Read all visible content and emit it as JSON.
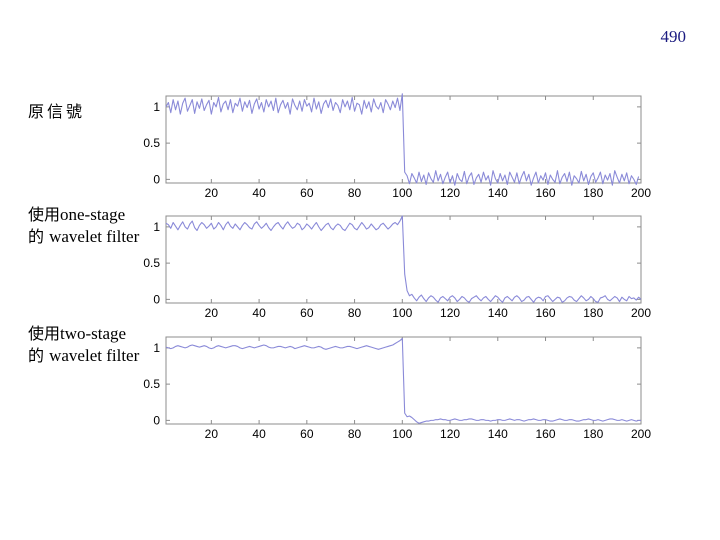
{
  "page_number": "490",
  "labels": {
    "original": "原信號",
    "one_stage_prefix": "使用",
    "one_stage_text": "one-stage",
    "two_stage_prefix": "使用",
    "two_stage_text": "two-stage",
    "de_prefix": "的",
    "wavelet_text": "wavelet filter"
  },
  "colors": {
    "series": "#8a8ad8",
    "axis": "#8c8c8c"
  },
  "chart_data": [
    {
      "type": "line",
      "title": "",
      "xlabel": "",
      "ylabel": "",
      "xlim": [
        1,
        200
      ],
      "ylim": [
        -0.05,
        1.15
      ],
      "x_ticks": [
        20,
        40,
        60,
        80,
        100,
        120,
        140,
        160,
        180,
        200
      ],
      "y_ticks": [
        {
          "v": 0,
          "label": "0"
        },
        {
          "v": 0.5,
          "label": "0.5"
        },
        {
          "v": 1,
          "label": "1"
        }
      ],
      "grid": false,
      "series": [
        {
          "values": [
            1.0,
            1.06,
            0.92,
            1.1,
            0.96,
            1.08,
            0.9,
            1.05,
            1.12,
            0.94,
            1.02,
            1.1,
            0.91,
            1.07,
            0.98,
            1.11,
            0.95,
            1.03,
            1.09,
            0.9,
            1.06,
            1.0,
            1.13,
            0.93,
            1.04,
            1.08,
            0.96,
            1.1,
            0.92,
            1.05,
            1.01,
            1.12,
            0.94,
            1.07,
            0.99,
            1.09,
            0.91,
            1.04,
            1.11,
            0.97,
            1.06,
            0.93,
            1.1,
            1.0,
            1.08,
            0.95,
            1.12,
            0.92,
            1.03,
            1.09,
            0.98,
            1.06,
            0.9,
            1.11,
            1.02,
            0.96,
            1.08,
            0.94,
            1.1,
            1.01,
            1.05,
            0.93,
            1.12,
            0.97,
            1.07,
            0.91,
            1.04,
            1.09,
            0.99,
            1.11,
            0.95,
            1.06,
            1.02,
            0.92,
            1.1,
            1.0,
            1.08,
            0.96,
            1.13,
            0.94,
            1.05,
            1.03,
            0.9,
            1.09,
            0.98,
            1.07,
            0.93,
            1.11,
            1.01,
            0.97,
            1.06,
            0.92,
            1.1,
            1.04,
            0.96,
            1.08,
            0.99,
            1.12,
            0.95,
            1.18,
            0.1,
            0.05,
            -0.06,
            0.08,
            0.02,
            -0.05,
            0.1,
            -0.03,
            0.06,
            -0.07,
            0.09,
            0.01,
            -0.04,
            0.12,
            -0.02,
            0.07,
            -0.06,
            0.03,
            0.1,
            -0.05,
            0.05,
            -0.08,
            0.08,
            0.0,
            -0.03,
            0.11,
            -0.06,
            0.04,
            0.09,
            -0.07,
            0.02,
            0.07,
            -0.04,
            0.1,
            -0.01,
            0.05,
            -0.08,
            0.12,
            0.01,
            -0.05,
            0.08,
            -0.02,
            0.06,
            -0.07,
            0.1,
            0.03,
            -0.04,
            0.09,
            -0.06,
            0.04,
            0.11,
            -0.02,
            0.07,
            -0.08,
            0.02,
            0.1,
            -0.05,
            0.05,
            -0.01,
            0.09,
            -0.07,
            0.06,
            0.0,
            -0.04,
            0.12,
            -0.06,
            0.03,
            0.08,
            -0.03,
            0.1,
            -0.08,
            0.05,
            0.01,
            -0.05,
            0.11,
            -0.02,
            0.07,
            -0.07,
            0.04,
            0.09,
            -0.04,
            0.02,
            0.1,
            -0.06,
            0.06,
            -0.01,
            0.08,
            -0.08,
            0.12,
            0.03,
            -0.05,
            0.07,
            -0.02,
            0.09,
            -0.06,
            0.05,
            0.0,
            -0.07,
            0.04
          ]
        }
      ]
    },
    {
      "type": "line",
      "title": "",
      "xlabel": "",
      "ylabel": "",
      "xlim": [
        1,
        200
      ],
      "ylim": [
        -0.05,
        1.15
      ],
      "x_ticks": [
        20,
        40,
        60,
        80,
        100,
        120,
        140,
        160,
        180,
        200
      ],
      "y_ticks": [
        {
          "v": 0,
          "label": "0"
        },
        {
          "v": 0.5,
          "label": "0.5"
        },
        {
          "v": 1,
          "label": "1"
        }
      ],
      "grid": false,
      "series": [
        {
          "values": [
            1.05,
            1.03,
            0.98,
            1.06,
            1.01,
            0.96,
            1.02,
            1.07,
            1.0,
            0.97,
            1.04,
            1.08,
            0.99,
            0.95,
            1.02,
            1.06,
            1.03,
            0.98,
            1.01,
            1.05,
            0.97,
            1.0,
            1.06,
            1.02,
            0.96,
            1.03,
            1.07,
            1.01,
            0.98,
            1.04,
            1.0,
            0.96,
            1.02,
            1.06,
            1.03,
            0.99,
            0.97,
            1.04,
            1.07,
            1.02,
            0.98,
            1.01,
            1.05,
            0.99,
            0.95,
            1.0,
            1.04,
            1.06,
            1.01,
            0.97,
            1.03,
            1.07,
            1.02,
            0.98,
            1.0,
            1.05,
            1.03,
            0.96,
            0.99,
            1.04,
            1.01,
            0.97,
            1.02,
            1.06,
            1.0,
            0.95,
            0.99,
            1.03,
            1.05,
            0.99,
            0.96,
            1.01,
            1.04,
            1.02,
            0.97,
            0.95,
            1.0,
            1.05,
            1.03,
            0.98,
            0.96,
            1.01,
            1.06,
            1.02,
            0.97,
            0.99,
            1.04,
            1.0,
            0.96,
            0.98,
            1.03,
            1.05,
            1.01,
            0.97,
            1.0,
            1.04,
            1.06,
            1.03,
            1.08,
            1.15,
            0.35,
            0.12,
            0.05,
            0.07,
            0.02,
            -0.02,
            0.03,
            0.06,
            0.01,
            -0.03,
            0.02,
            0.05,
            0.03,
            -0.01,
            -0.04,
            0.02,
            0.04,
            0.01,
            -0.02,
            0.03,
            0.05,
            0.02,
            -0.03,
            0.0,
            0.04,
            0.02,
            -0.02,
            -0.04,
            0.01,
            0.03,
            0.05,
            0.01,
            -0.02,
            0.02,
            0.04,
            0.0,
            -0.03,
            0.01,
            0.05,
            0.03,
            -0.01,
            -0.04,
            0.02,
            0.04,
            0.01,
            -0.02,
            0.03,
            0.05,
            0.02,
            -0.03,
            -0.01,
            0.03,
            0.04,
            0.0,
            -0.04,
            0.01,
            0.03,
            0.02,
            -0.02,
            0.04,
            0.05,
            0.01,
            -0.03,
            0.0,
            0.03,
            0.02,
            -0.04,
            -0.02,
            0.02,
            0.04,
            0.03,
            -0.01,
            -0.03,
            0.01,
            0.05,
            0.02,
            -0.02,
            0.0,
            0.04,
            0.01,
            -0.03,
            -0.04,
            0.02,
            0.03,
            0.05,
            0.0,
            -0.02,
            0.01,
            0.04,
            0.02,
            -0.03,
            0.03,
            0.0,
            -0.02,
            0.04,
            0.01,
            0.02,
            -0.01,
            0.03,
            0.0
          ]
        }
      ]
    },
    {
      "type": "line",
      "title": "",
      "xlabel": "",
      "ylabel": "",
      "xlim": [
        1,
        200
      ],
      "ylim": [
        -0.05,
        1.15
      ],
      "x_ticks": [
        20,
        40,
        60,
        80,
        100,
        120,
        140,
        160,
        180,
        200
      ],
      "y_ticks": [
        {
          "v": 0,
          "label": "0"
        },
        {
          "v": 0.5,
          "label": "0.5"
        },
        {
          "v": 1,
          "label": "1"
        }
      ],
      "grid": false,
      "series": [
        {
          "values": [
            1.01,
            1.0,
            0.99,
            1.0,
            1.02,
            1.03,
            1.02,
            1.01,
            1.0,
            1.01,
            1.03,
            1.04,
            1.03,
            1.02,
            1.01,
            1.02,
            1.03,
            1.02,
            1.0,
            0.99,
            1.0,
            1.02,
            1.03,
            1.02,
            1.01,
            1.0,
            1.01,
            1.02,
            1.03,
            1.03,
            1.02,
            1.0,
            0.99,
            1.0,
            1.01,
            1.02,
            1.01,
            1.0,
            1.01,
            1.02,
            1.03,
            1.04,
            1.03,
            1.01,
            1.0,
            1.0,
            1.01,
            1.02,
            1.02,
            1.01,
            1.0,
            1.01,
            1.02,
            1.01,
            0.99,
            1.0,
            1.01,
            1.02,
            1.03,
            1.02,
            1.01,
            1.0,
            1.0,
            1.01,
            1.02,
            1.01,
            0.99,
            0.98,
            0.99,
            1.0,
            1.01,
            1.02,
            1.01,
            1.0,
            1.0,
            1.01,
            1.02,
            1.02,
            1.01,
            1.0,
            0.99,
            1.0,
            1.01,
            1.02,
            1.03,
            1.02,
            1.01,
            1.0,
            0.99,
            0.98,
            0.99,
            1.0,
            1.01,
            1.02,
            1.03,
            1.04,
            1.06,
            1.08,
            1.1,
            1.13,
            0.1,
            0.05,
            0.06,
            0.04,
            0.01,
            -0.02,
            -0.04,
            -0.03,
            -0.02,
            -0.01,
            -0.01,
            0.0,
            0.0,
            0.01,
            0.01,
            0.02,
            0.01,
            0.01,
            0.0,
            0.0,
            0.01,
            0.02,
            0.01,
            0.0,
            0.0,
            0.01,
            0.01,
            0.02,
            0.02,
            0.01,
            0.0,
            0.0,
            0.01,
            0.01,
            0.0,
            0.0,
            -0.01,
            0.0,
            0.0,
            0.01,
            0.01,
            0.0,
            0.0,
            0.01,
            0.02,
            0.01,
            0.0,
            0.01,
            0.01,
            0.0,
            -0.01,
            0.0,
            0.01,
            0.01,
            0.02,
            0.01,
            0.0,
            0.0,
            0.01,
            0.01,
            0.0,
            -0.01,
            -0.01,
            0.0,
            0.01,
            0.02,
            0.01,
            0.0,
            0.0,
            0.01,
            0.01,
            0.0,
            -0.01,
            -0.01,
            0.0,
            0.01,
            0.01,
            0.02,
            0.01,
            0.0,
            0.0,
            0.01,
            0.0,
            -0.01,
            0.0,
            0.01,
            0.02,
            0.02,
            0.01,
            0.0,
            0.0,
            0.01,
            0.0,
            -0.01,
            0.0,
            0.01,
            0.0,
            -0.01,
            0.0,
            0.0
          ]
        }
      ]
    }
  ]
}
